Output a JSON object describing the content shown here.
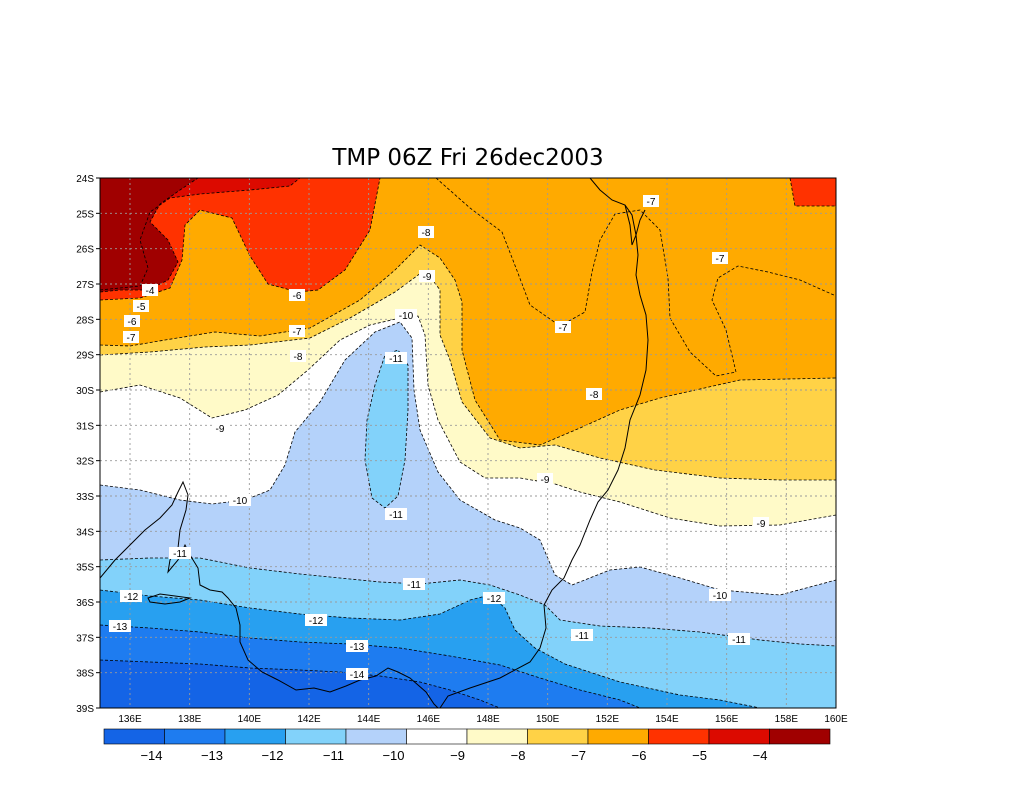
{
  "title": "TMP 06Z Fri 26dec2003",
  "lat_ticks": [
    "24S",
    "25S",
    "26S",
    "27S",
    "28S",
    "29S",
    "30S",
    "31S",
    "32S",
    "33S",
    "34S",
    "35S",
    "36S",
    "37S",
    "38S",
    "39S"
  ],
  "lon_ticks": [
    "136E",
    "138E",
    "140E",
    "142E",
    "144E",
    "146E",
    "148E",
    "150E",
    "152E",
    "154E",
    "156E",
    "158E",
    "160E"
  ],
  "colors": {
    "lt_m14": "#1464e6",
    "m14_m13": "#1e7cf0",
    "m13_m12": "#28a0f0",
    "m12_m11": "#82d2fa",
    "m11_m10": "#b4d2fa",
    "m10_m9": "#ffffff",
    "m9_m8": "#fffac8",
    "m8_m7": "#ffd246",
    "m7_m6": "#ffaa00",
    "m6_m5": "#ff3200",
    "m5_m4": "#dc0a00",
    "gt_m4": "#a00000"
  },
  "colorbar_labels": [
    "−14",
    "−13",
    "−12",
    "−11",
    "−10",
    "−9",
    "−8",
    "−7",
    "−6",
    "−5",
    "−4"
  ],
  "contour_labels": [
    {
      "id": "m4",
      "text": "-4"
    },
    {
      "id": "m5",
      "text": "-5"
    },
    {
      "id": "m6a",
      "text": "-6"
    },
    {
      "id": "m6b",
      "text": "-6"
    },
    {
      "id": "m7a",
      "text": "-7"
    },
    {
      "id": "m7b",
      "text": "-7"
    },
    {
      "id": "m7c",
      "text": "-7"
    },
    {
      "id": "m7d",
      "text": "-7"
    },
    {
      "id": "m7e",
      "text": "-7"
    },
    {
      "id": "m8a",
      "text": "-8"
    },
    {
      "id": "m8b",
      "text": "-8"
    },
    {
      "id": "m8c",
      "text": "-8"
    },
    {
      "id": "m9a",
      "text": "-9"
    },
    {
      "id": "m9b",
      "text": "-9"
    },
    {
      "id": "m9c",
      "text": "-9"
    },
    {
      "id": "m9d",
      "text": "-9"
    },
    {
      "id": "m10a",
      "text": "-10"
    },
    {
      "id": "m10b",
      "text": "-10"
    },
    {
      "id": "m10c",
      "text": "-10"
    },
    {
      "id": "m11a",
      "text": "-11"
    },
    {
      "id": "m11b",
      "text": "-11"
    },
    {
      "id": "m11c",
      "text": "-11"
    },
    {
      "id": "m11d",
      "text": "-11"
    },
    {
      "id": "m11e",
      "text": "-11"
    },
    {
      "id": "m11f",
      "text": "-11"
    },
    {
      "id": "m12a",
      "text": "-12"
    },
    {
      "id": "m12b",
      "text": "-12"
    },
    {
      "id": "m12c",
      "text": "-12"
    },
    {
      "id": "m13a",
      "text": "-13"
    },
    {
      "id": "m13b",
      "text": "-13"
    },
    {
      "id": "m14",
      "text": "-14"
    }
  ]
}
